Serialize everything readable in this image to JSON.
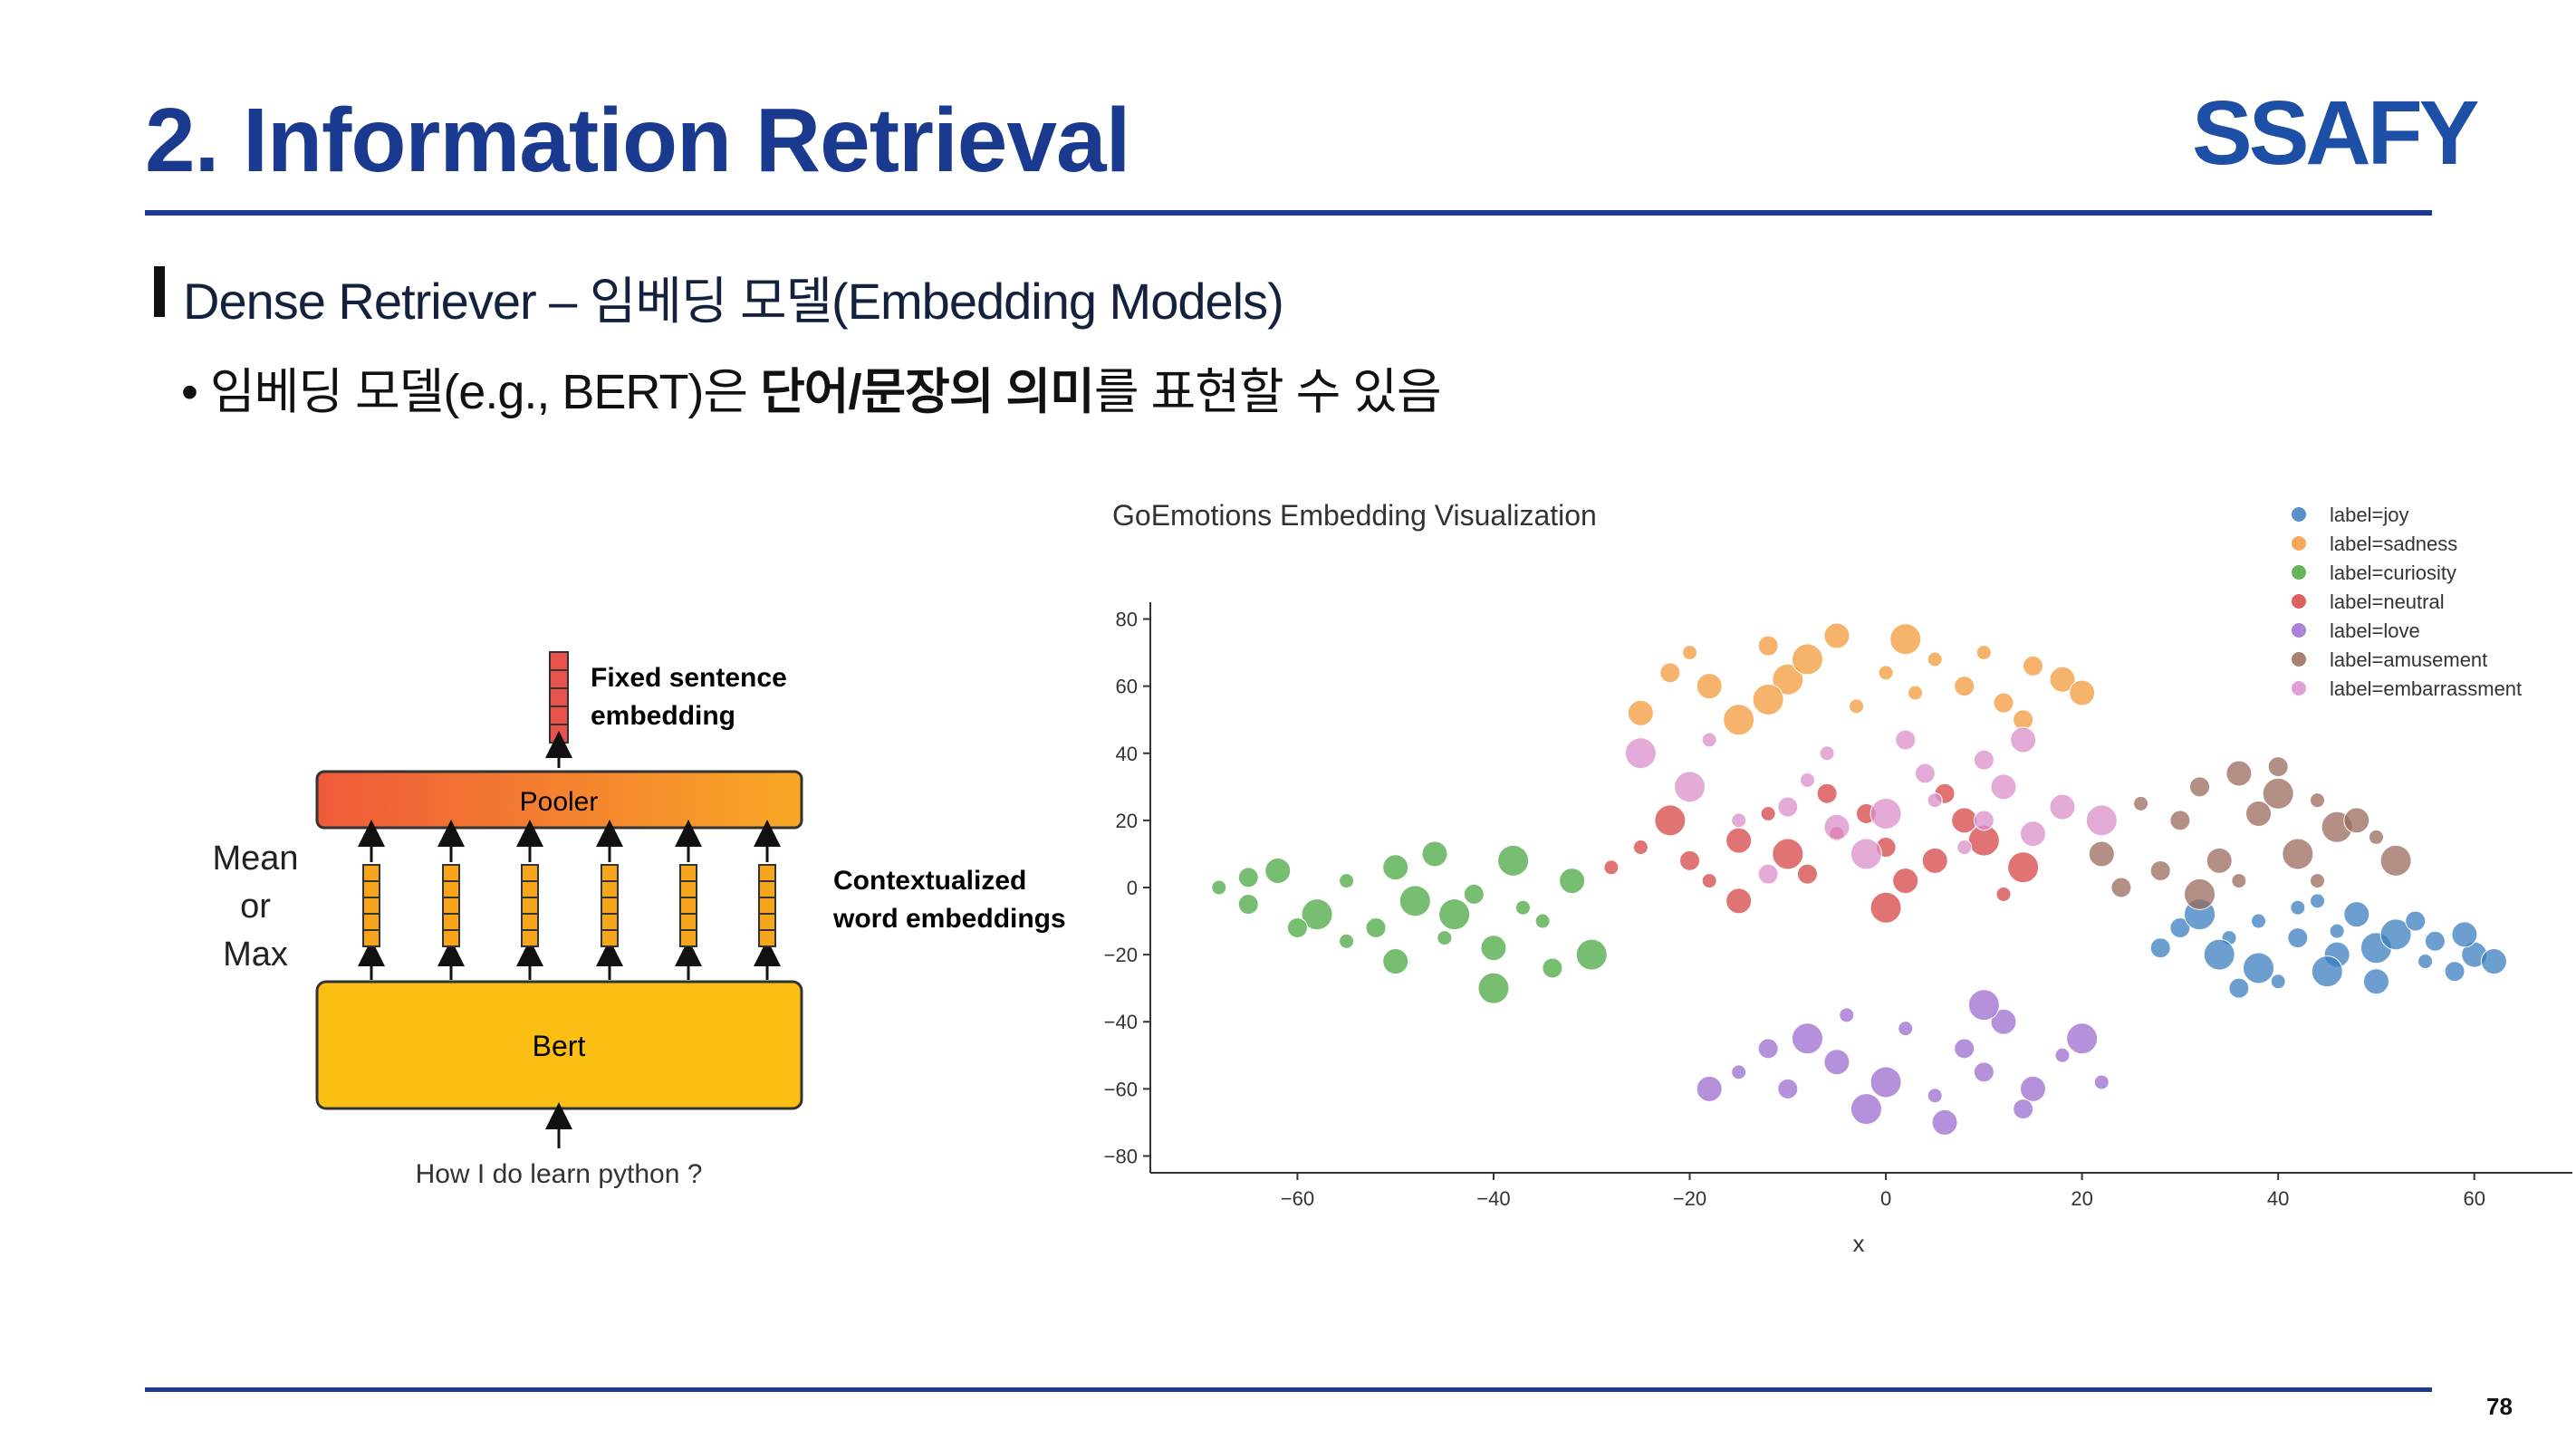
{
  "header": {
    "title": "2. Information Retrieval",
    "logo_text": "SSAFY"
  },
  "section": {
    "title": "Dense Retriever – 임베딩 모델(Embedding Models)"
  },
  "bullet": {
    "prefix": "임베딩 모델(e.g., BERT)은 ",
    "bold": "단어/문장의 의미",
    "suffix": "를 표현할 수 있음"
  },
  "diagram": {
    "fixed_embedding_label": [
      "Fixed sentence",
      "embedding"
    ],
    "pooler_label": "Pooler",
    "bert_label": "Bert",
    "pooling_label": [
      "Mean",
      "or",
      "Max"
    ],
    "contextual_label": [
      "Contextualized",
      "word embeddings"
    ],
    "input_text": "How I do learn python ?",
    "colors": {
      "pooler_gradient": [
        "#ef5a3a",
        "#f9a825"
      ],
      "bert_fill": "#fbbf13",
      "token_box": "#f7a51d",
      "fixed_box": "#e8524a"
    }
  },
  "footer": {
    "page_number": "78"
  },
  "chart_data": {
    "type": "scatter",
    "title": "GoEmotions Embedding Visualization",
    "xlabel": "x",
    "ylabel": "",
    "xlim": [
      -75,
      70
    ],
    "ylim": [
      -85,
      85
    ],
    "x_ticks": [
      -60,
      -40,
      -20,
      0,
      20,
      40,
      60
    ],
    "y_ticks": [
      80,
      60,
      40,
      20,
      0,
      -20,
      -40,
      -60,
      -80
    ],
    "legend_position": "top-right",
    "series": [
      {
        "name": "label=joy",
        "color": "#3b7ec0",
        "values": [
          [
            38,
            -10
          ],
          [
            42,
            -15
          ],
          [
            46,
            -20
          ],
          [
            50,
            -18
          ],
          [
            55,
            -22
          ],
          [
            58,
            -25
          ],
          [
            60,
            -20
          ],
          [
            45,
            -25
          ],
          [
            35,
            -15
          ],
          [
            30,
            -12
          ],
          [
            48,
            -8
          ],
          [
            52,
            -14
          ],
          [
            40,
            -28
          ],
          [
            56,
            -16
          ],
          [
            62,
            -22
          ],
          [
            34,
            -20
          ],
          [
            44,
            -4
          ],
          [
            28,
            -18
          ],
          [
            50,
            -28
          ],
          [
            38,
            -24
          ],
          [
            42,
            -6
          ],
          [
            54,
            -10
          ],
          [
            59,
            -14
          ],
          [
            32,
            -8
          ],
          [
            46,
            -13
          ],
          [
            36,
            -30
          ]
        ]
      },
      {
        "name": "label=sadness",
        "color": "#f39a3a",
        "values": [
          [
            -20,
            70
          ],
          [
            -12,
            72
          ],
          [
            -5,
            75
          ],
          [
            2,
            74
          ],
          [
            10,
            70
          ],
          [
            15,
            66
          ],
          [
            -18,
            60
          ],
          [
            -10,
            62
          ],
          [
            0,
            64
          ],
          [
            8,
            60
          ],
          [
            -25,
            52
          ],
          [
            -15,
            50
          ],
          [
            -3,
            54
          ],
          [
            12,
            55
          ],
          [
            18,
            62
          ],
          [
            -8,
            68
          ],
          [
            5,
            68
          ],
          [
            -22,
            64
          ],
          [
            20,
            58
          ],
          [
            -12,
            56
          ],
          [
            3,
            58
          ],
          [
            14,
            50
          ]
        ]
      },
      {
        "name": "label=curiosity",
        "color": "#4aa843",
        "values": [
          [
            -68,
            0
          ],
          [
            -65,
            -5
          ],
          [
            -62,
            5
          ],
          [
            -58,
            -8
          ],
          [
            -55,
            2
          ],
          [
            -52,
            -12
          ],
          [
            -50,
            6
          ],
          [
            -48,
            -4
          ],
          [
            -45,
            -15
          ],
          [
            -42,
            -2
          ],
          [
            -40,
            -18
          ],
          [
            -38,
            8
          ],
          [
            -35,
            -10
          ],
          [
            -34,
            -24
          ],
          [
            -32,
            2
          ],
          [
            -30,
            -20
          ],
          [
            -55,
            -16
          ],
          [
            -60,
            -12
          ],
          [
            -46,
            10
          ],
          [
            -40,
            -30
          ],
          [
            -37,
            -6
          ],
          [
            -65,
            3
          ],
          [
            -50,
            -22
          ],
          [
            -44,
            -8
          ]
        ]
      },
      {
        "name": "label=neutral",
        "color": "#d64545",
        "values": [
          [
            -25,
            12
          ],
          [
            -20,
            8
          ],
          [
            -15,
            14
          ],
          [
            -10,
            10
          ],
          [
            -5,
            16
          ],
          [
            0,
            12
          ],
          [
            5,
            8
          ],
          [
            10,
            14
          ],
          [
            -18,
            2
          ],
          [
            -8,
            4
          ],
          [
            2,
            2
          ],
          [
            -22,
            20
          ],
          [
            -12,
            22
          ],
          [
            -2,
            22
          ],
          [
            8,
            20
          ],
          [
            14,
            6
          ],
          [
            -28,
            6
          ],
          [
            6,
            28
          ],
          [
            -15,
            -4
          ],
          [
            0,
            -6
          ],
          [
            12,
            -2
          ],
          [
            -6,
            28
          ]
        ]
      },
      {
        "name": "label=love",
        "color": "#9c6ccf",
        "values": [
          [
            -15,
            -55
          ],
          [
            -10,
            -60
          ],
          [
            -5,
            -52
          ],
          [
            0,
            -58
          ],
          [
            5,
            -62
          ],
          [
            10,
            -55
          ],
          [
            15,
            -60
          ],
          [
            -8,
            -45
          ],
          [
            2,
            -42
          ],
          [
            8,
            -48
          ],
          [
            12,
            -40
          ],
          [
            -2,
            -66
          ],
          [
            18,
            -50
          ],
          [
            -12,
            -48
          ],
          [
            6,
            -70
          ],
          [
            20,
            -45
          ],
          [
            -4,
            -38
          ],
          [
            14,
            -66
          ],
          [
            -18,
            -60
          ],
          [
            10,
            -35
          ],
          [
            22,
            -58
          ]
        ]
      },
      {
        "name": "label=amusement",
        "color": "#9a6a5c",
        "values": [
          [
            26,
            25
          ],
          [
            32,
            30
          ],
          [
            36,
            34
          ],
          [
            40,
            28
          ],
          [
            44,
            26
          ],
          [
            30,
            20
          ],
          [
            38,
            22
          ],
          [
            46,
            18
          ],
          [
            50,
            15
          ],
          [
            28,
            5
          ],
          [
            34,
            8
          ],
          [
            42,
            10
          ],
          [
            36,
            2
          ],
          [
            24,
            0
          ],
          [
            48,
            20
          ],
          [
            32,
            -2
          ],
          [
            44,
            2
          ],
          [
            40,
            36
          ],
          [
            22,
            10
          ],
          [
            52,
            8
          ]
        ]
      },
      {
        "name": "label=embarrassment",
        "color": "#dc8fcb",
        "values": [
          [
            -15,
            20
          ],
          [
            -10,
            24
          ],
          [
            -5,
            18
          ],
          [
            0,
            22
          ],
          [
            5,
            26
          ],
          [
            10,
            20
          ],
          [
            15,
            16
          ],
          [
            -20,
            30
          ],
          [
            -8,
            32
          ],
          [
            4,
            34
          ],
          [
            12,
            30
          ],
          [
            -2,
            10
          ],
          [
            8,
            12
          ],
          [
            -12,
            4
          ],
          [
            18,
            24
          ],
          [
            -25,
            40
          ],
          [
            -18,
            44
          ],
          [
            2,
            44
          ],
          [
            14,
            44
          ],
          [
            22,
            20
          ],
          [
            -6,
            40
          ],
          [
            10,
            38
          ]
        ]
      }
    ]
  }
}
